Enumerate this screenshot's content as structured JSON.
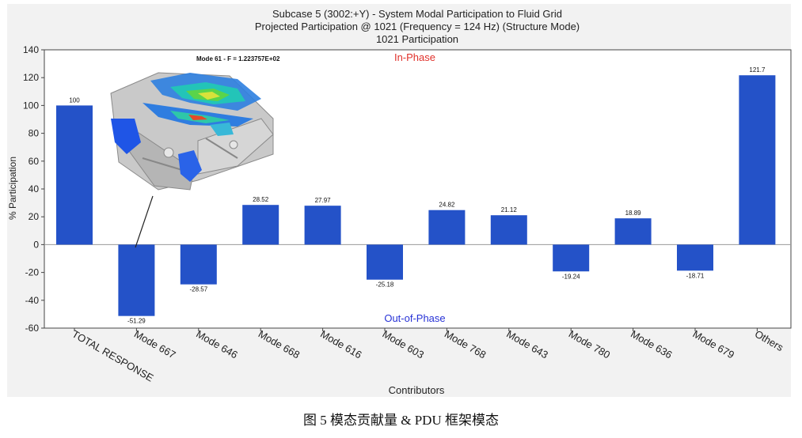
{
  "caption": "图 5 模态贡献量 & PDU 框架模态",
  "inset": {
    "label": "Mode 61 - F = 1.223757E+02"
  },
  "colors": {
    "bar": "#2452c8",
    "in_phase": "#e0312b",
    "out_of_phase": "#2732d6",
    "plot_bg": "#ffffff",
    "figure_bg": "#f2f2f2"
  },
  "chart_data": {
    "type": "bar",
    "title": "Subcase 5 (3002:+Y) - System Modal Participation to Fluid Grid",
    "subtitle_1": "Projected Participation @ 1021 (Frequency = 124 Hz) (Structure Mode)",
    "subtitle_2": "1021 Participation",
    "xlabel": "Contributors",
    "ylabel": "% Participation",
    "ylim": [
      -60,
      140
    ],
    "yticks": [
      -60,
      -40,
      -20,
      0,
      20,
      40,
      60,
      80,
      100,
      120,
      140
    ],
    "grid": false,
    "annotations": [
      "In-Phase",
      "Out-of-Phase"
    ],
    "categories": [
      "TOTAL RESPONSE",
      "Mode 667",
      "Mode 646",
      "Mode 668",
      "Mode 616",
      "Mode 603",
      "Mode 768",
      "Mode 643",
      "Mode 780",
      "Mode 636",
      "Mode 679",
      "Others"
    ],
    "values": [
      100,
      -51.29,
      -28.57,
      28.52,
      27.97,
      -25.18,
      24.82,
      21.12,
      -19.24,
      18.89,
      -18.71,
      121.7
    ]
  }
}
